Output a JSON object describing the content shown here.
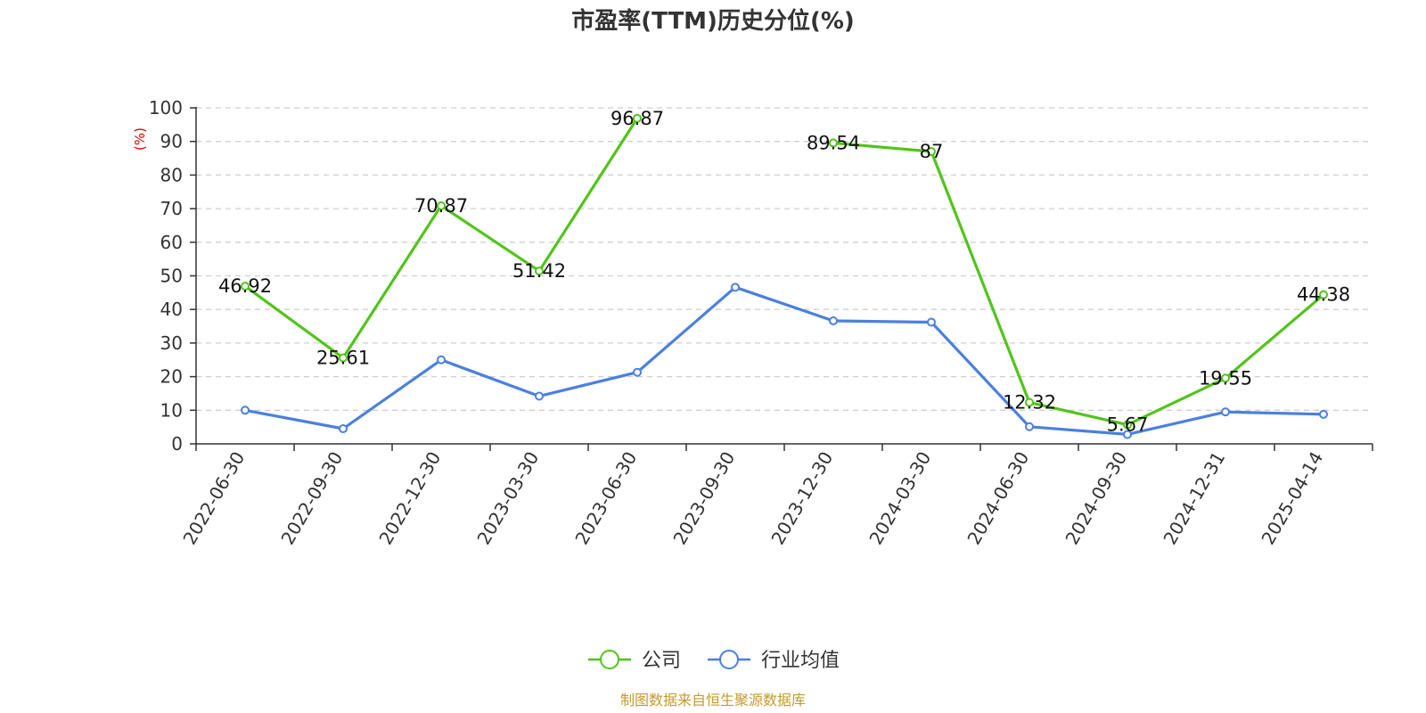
{
  "chart_data": {
    "type": "line",
    "title": "市盈率(TTM)历史分位(%)",
    "ylabel": "(%)",
    "ylim": [
      0,
      100
    ],
    "yticks": [
      0,
      10,
      20,
      30,
      40,
      50,
      60,
      70,
      80,
      90,
      100
    ],
    "grid": true,
    "legend_position": "bottom-center",
    "categories": [
      "2022-06-30",
      "2022-09-30",
      "2022-12-30",
      "2023-03-30",
      "2023-06-30",
      "2023-09-30",
      "2023-12-30",
      "2024-03-30",
      "2024-06-30",
      "2024-09-30",
      "2024-12-31",
      "2025-04-14"
    ],
    "series": [
      {
        "name": "公司",
        "color": "#52c41a",
        "show_labels": true,
        "values": [
          46.92,
          25.61,
          70.87,
          51.42,
          96.87,
          null,
          89.54,
          87,
          12.32,
          5.67,
          19.55,
          44.38
        ]
      },
      {
        "name": "行业均值",
        "color": "#4a80e0",
        "show_labels": false,
        "values": [
          10.0,
          4.5,
          25.0,
          14.2,
          21.3,
          46.6,
          36.6,
          36.2,
          5.1,
          2.8,
          9.5,
          8.8
        ]
      }
    ]
  },
  "source": "制图数据来自恒生聚源数据库"
}
